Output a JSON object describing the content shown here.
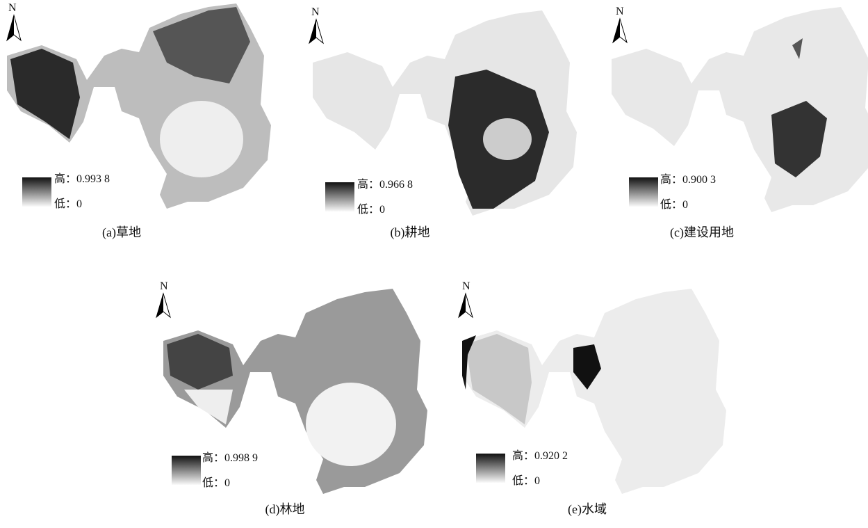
{
  "panels": [
    {
      "north": "N",
      "legend_high": "高：0.993 8",
      "legend_low": "低：0",
      "caption": "(a)草地"
    },
    {
      "north": "N",
      "legend_high": "高：0.966 8",
      "legend_low": "低：0",
      "caption": "(b)耕地"
    },
    {
      "north": "N",
      "legend_high": "高：0.900 3",
      "legend_low": "低：0",
      "caption": "(c)建设用地"
    },
    {
      "north": "N",
      "legend_high": "高：0.998 9",
      "legend_low": "低：0",
      "caption": "(d)林地"
    },
    {
      "north": "N",
      "legend_high": "高：0.920 2",
      "legend_low": "低：0",
      "caption": "(e)水域"
    }
  ]
}
